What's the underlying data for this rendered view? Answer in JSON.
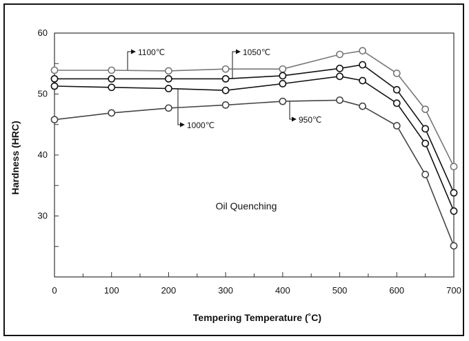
{
  "chart_data": {
    "type": "line",
    "xlabel": "Tempering Temperature (˚C)",
    "ylabel": "Hardness (HRC)",
    "annotation": "Oil Quenching",
    "xlim": [
      0,
      700
    ],
    "ylim": [
      20,
      60
    ],
    "x_ticks": [
      0,
      100,
      200,
      300,
      400,
      500,
      600,
      700
    ],
    "x_tick_labels": [
      "0",
      "100",
      "200",
      "300",
      "400",
      "500",
      "600",
      "700"
    ],
    "y_ticks": [
      30,
      40,
      50,
      60
    ],
    "y_tick_labels": [
      "30",
      "40",
      "50",
      "60"
    ],
    "grid": false,
    "series": [
      {
        "name": "1100℃",
        "color": "#777777",
        "x": [
          0,
          100,
          200,
          300,
          400,
          500,
          540,
          600,
          650,
          700
        ],
        "y": [
          53.9,
          53.9,
          53.8,
          54.1,
          54.1,
          56.5,
          57.1,
          53.4,
          47.5,
          38.1
        ]
      },
      {
        "name": "1050℃",
        "color": "#111111",
        "x": [
          0,
          100,
          200,
          300,
          400,
          500,
          540,
          600,
          650,
          700
        ],
        "y": [
          52.5,
          52.5,
          52.5,
          52.5,
          53.0,
          54.2,
          54.8,
          50.7,
          44.3,
          33.8
        ]
      },
      {
        "name": "1000℃",
        "color": "#111111",
        "x": [
          0,
          100,
          200,
          300,
          400,
          500,
          540,
          600,
          650,
          700
        ],
        "y": [
          51.3,
          51.1,
          50.9,
          50.6,
          51.7,
          52.9,
          52.2,
          48.5,
          41.9,
          30.8
        ]
      },
      {
        "name": "950℃",
        "color": "#444444",
        "x": [
          0,
          100,
          200,
          300,
          400,
          500,
          540,
          600,
          650,
          700
        ],
        "y": [
          45.8,
          46.9,
          47.7,
          48.2,
          48.8,
          49.0,
          48.0,
          44.8,
          36.8,
          25.1
        ]
      }
    ],
    "callouts": [
      {
        "series": "1100℃",
        "label": "1100℃"
      },
      {
        "series": "1050℃",
        "label": "1050℃"
      },
      {
        "series": "1000℃",
        "label": "1000℃"
      },
      {
        "series": "950℃",
        "label": "950℃"
      }
    ]
  }
}
